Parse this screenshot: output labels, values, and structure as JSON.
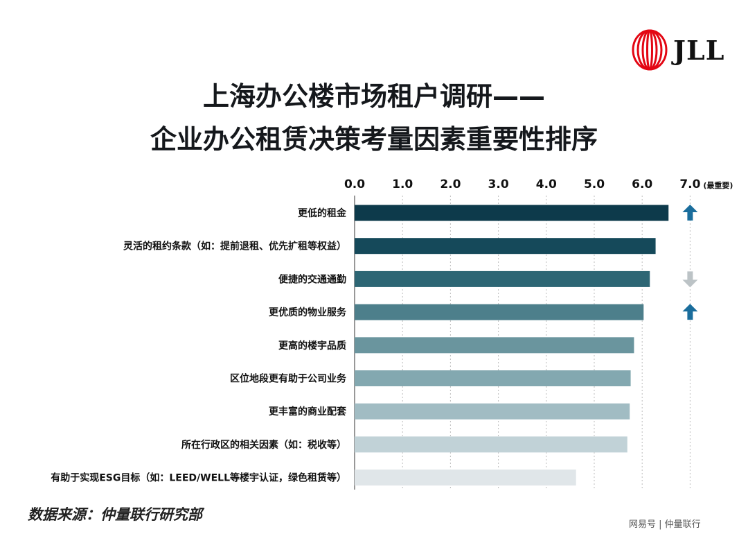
{
  "logo": {
    "text": "JLL",
    "color": "#e30613"
  },
  "title": {
    "line1": "上海办公楼市场租户调研——",
    "line2": "企业办公租赁决策考量因素重要性排序"
  },
  "source": "数据来源：仲量联行研究部",
  "watermark": "网易号 | 仲量联行",
  "chart_data": {
    "type": "bar",
    "orientation": "horizontal",
    "title": "上海办公楼市场租户调研——企业办公租赁决策考量因素重要性排序",
    "xlim": [
      0,
      7
    ],
    "ticks": [
      "0.0",
      "1.0",
      "2.0",
      "3.0",
      "4.0",
      "5.0",
      "6.0",
      "7.0"
    ],
    "max_note": "(最重要)",
    "categories": [
      "更低的租金",
      "灵活的租约条款（如：提前退租、优先扩租等权益）",
      "便捷的交通通勤",
      "更优质的物业服务",
      "更高的楼宇品质",
      "区位地段更有助于公司业务",
      "更丰富的商业配套",
      "所在行政区的相关因素（如：税收等）",
      "有助于实现ESG目标（如：LEED/WELL等楼宇认证，绿色租赁等）"
    ],
    "values": [
      6.55,
      6.28,
      6.16,
      6.03,
      5.83,
      5.76,
      5.74,
      5.69,
      4.62
    ],
    "bar_colors": [
      "#0d3a4b",
      "#15495a",
      "#2d6674",
      "#4d7f8b",
      "#6a959e",
      "#83a8b0",
      "#a1bcc3",
      "#c1d2d7",
      "#e0e6e9"
    ],
    "trend_markers": [
      "up",
      "",
      "down",
      "up",
      "",
      "",
      "",
      "",
      ""
    ],
    "trend_colors": {
      "up": "#1a6d9c",
      "down": "#bcc3c6"
    },
    "grid": true
  }
}
